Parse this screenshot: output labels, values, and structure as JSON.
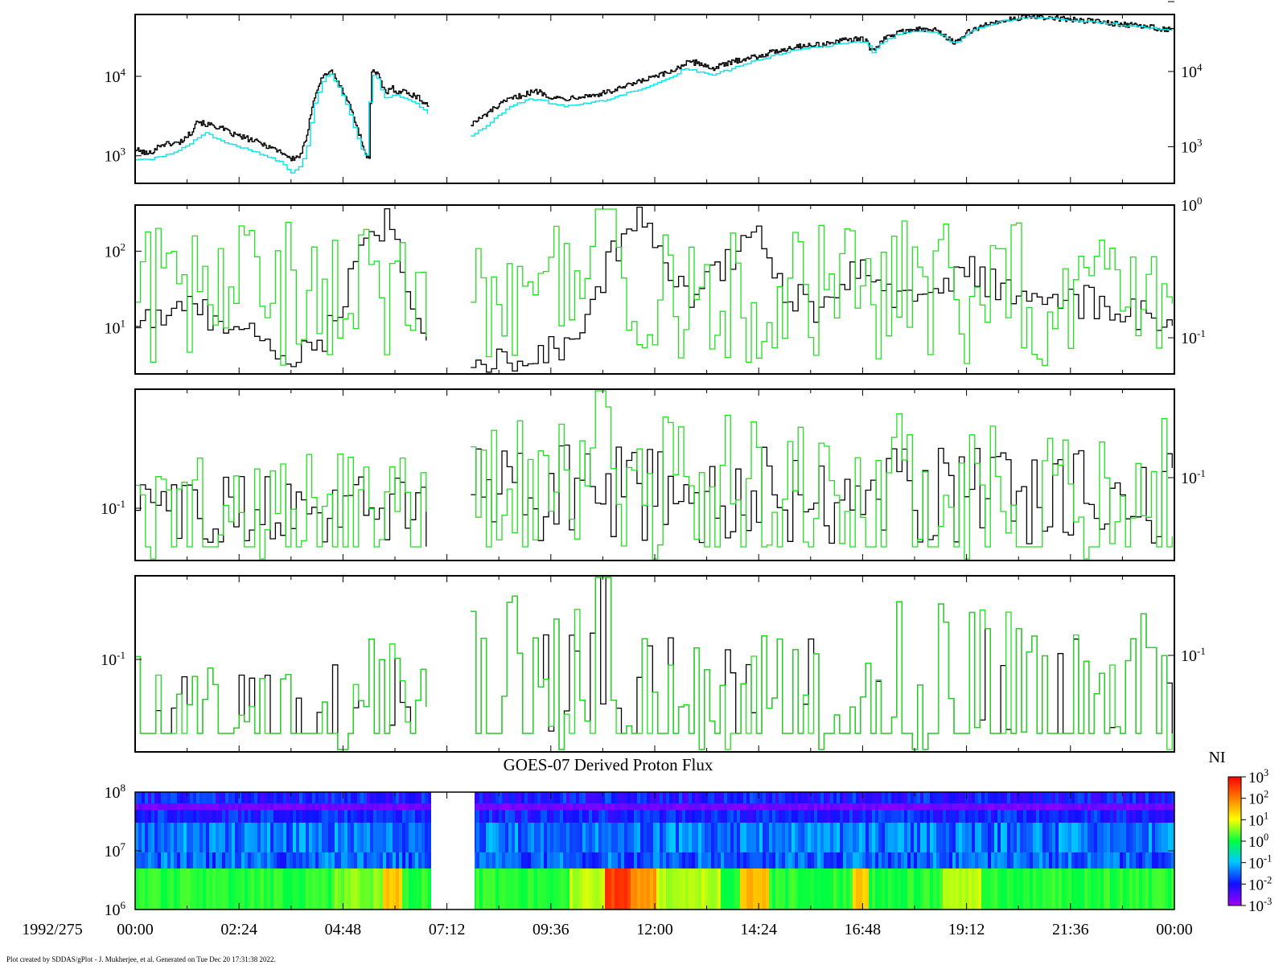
{
  "colors": {
    "black_series": "#000000",
    "cyan_series": "#00e5e5",
    "green_series": "#20e020",
    "frame": "#000000",
    "colorbar_stops": [
      "#a000ff",
      "#1010ff",
      "#00c8ff",
      "#00ff40",
      "#ffff00",
      "#ff8000",
      "#ff0000"
    ]
  },
  "chart_data": [
    {
      "type": "line",
      "panel": 1,
      "scale": "log",
      "ylim": [
        450,
        60000
      ],
      "left_ticks": [
        "10^3",
        "10^4"
      ],
      "right_ticks": [
        "10^3",
        "10^4"
      ],
      "gap_hours": [
        6.8,
        7.75
      ],
      "series": [
        {
          "color": "black",
          "anchors": [
            [
              0.0,
              1200
            ],
            [
              0.3,
              1050
            ],
            [
              0.6,
              1400
            ],
            [
              1.0,
              1450
            ],
            [
              1.1,
              1600
            ],
            [
              1.3,
              2000
            ],
            [
              1.4,
              2800
            ],
            [
              1.6,
              2500
            ],
            [
              1.8,
              2400
            ],
            [
              2.0,
              2200
            ],
            [
              2.2,
              1900
            ],
            [
              2.5,
              1700
            ],
            [
              2.8,
              1500
            ],
            [
              3.1,
              1300
            ],
            [
              3.4,
              1100
            ],
            [
              3.6,
              900
            ],
            [
              3.8,
              1000
            ],
            [
              3.95,
              1600
            ],
            [
              4.1,
              5000
            ],
            [
              4.3,
              9500
            ],
            [
              4.5,
              12000
            ],
            [
              4.7,
              8000
            ],
            [
              4.9,
              5000
            ],
            [
              5.1,
              2500
            ],
            [
              5.3,
              1100
            ],
            [
              5.4,
              900
            ],
            [
              5.45,
              12000
            ],
            [
              5.6,
              10500
            ],
            [
              5.7,
              7500
            ],
            [
              5.8,
              6000
            ],
            [
              5.9,
              7500
            ],
            [
              6.0,
              6500
            ],
            [
              6.2,
              6500
            ],
            [
              6.5,
              5500
            ],
            [
              6.8,
              4200
            ]
          ],
          "anchors_after_gap": [
            [
              7.75,
              2500
            ],
            [
              8.0,
              3000
            ],
            [
              8.3,
              4000
            ],
            [
              8.6,
              5000
            ],
            [
              9.0,
              6000
            ],
            [
              9.3,
              6500
            ],
            [
              9.6,
              5500
            ],
            [
              9.9,
              5200
            ],
            [
              10.2,
              5600
            ],
            [
              10.6,
              5800
            ],
            [
              11.0,
              6500
            ],
            [
              11.5,
              8000
            ],
            [
              11.9,
              9500
            ],
            [
              12.3,
              11000
            ],
            [
              12.7,
              14500
            ],
            [
              13.0,
              15000
            ],
            [
              13.3,
              12500
            ],
            [
              13.7,
              14500
            ],
            [
              14.0,
              16500
            ],
            [
              14.4,
              18000
            ],
            [
              14.9,
              21500
            ],
            [
              15.3,
              24000
            ],
            [
              15.8,
              25000
            ],
            [
              16.2,
              27000
            ],
            [
              16.6,
              30000
            ],
            [
              16.9,
              28000
            ],
            [
              17.0,
              20000
            ],
            [
              17.3,
              30000
            ],
            [
              17.7,
              37000
            ],
            [
              18.0,
              39000
            ],
            [
              18.5,
              38000
            ],
            [
              18.7,
              32000
            ],
            [
              18.95,
              26000
            ],
            [
              19.2,
              35000
            ],
            [
              19.5,
              42000
            ],
            [
              20.0,
              50000
            ],
            [
              20.5,
              56000
            ],
            [
              21.0,
              55000
            ],
            [
              21.5,
              52000
            ],
            [
              22.0,
              50000
            ],
            [
              22.5,
              47000
            ],
            [
              23.0,
              44000
            ],
            [
              23.5,
              41000
            ],
            [
              24.0,
              38000
            ]
          ]
        },
        {
          "color": "cyan",
          "anchors": [
            [
              0.0,
              900
            ],
            [
              0.3,
              880
            ],
            [
              0.6,
              1000
            ],
            [
              1.0,
              1150
            ],
            [
              1.3,
              1500
            ],
            [
              1.6,
              2000
            ],
            [
              1.8,
              1700
            ],
            [
              2.0,
              1500
            ],
            [
              2.4,
              1300
            ],
            [
              2.8,
              1100
            ],
            [
              3.1,
              950
            ],
            [
              3.4,
              800
            ],
            [
              3.6,
              600
            ],
            [
              3.8,
              750
            ],
            [
              3.95,
              1200
            ],
            [
              4.1,
              4000
            ],
            [
              4.3,
              8500
            ],
            [
              4.5,
              11000
            ],
            [
              4.7,
              7000
            ],
            [
              4.9,
              4000
            ],
            [
              5.1,
              1800
            ],
            [
              5.3,
              900
            ],
            [
              5.45,
              10500
            ],
            [
              5.6,
              9500
            ],
            [
              5.7,
              6000
            ],
            [
              5.8,
              5000
            ],
            [
              5.9,
              6000
            ],
            [
              6.2,
              5300
            ],
            [
              6.5,
              4500
            ],
            [
              6.8,
              3200
            ]
          ],
          "anchors_after_gap": [
            [
              7.75,
              1800
            ],
            [
              8.0,
              2200
            ],
            [
              8.3,
              3000
            ],
            [
              8.6,
              4000
            ],
            [
              9.0,
              5000
            ],
            [
              9.3,
              5200
            ],
            [
              9.6,
              4500
            ],
            [
              9.9,
              4200
            ],
            [
              10.2,
              4400
            ],
            [
              10.6,
              4700
            ],
            [
              11.0,
              5300
            ],
            [
              11.5,
              6500
            ],
            [
              11.9,
              7800
            ],
            [
              12.3,
              9500
            ],
            [
              12.7,
              12500
            ],
            [
              13.0,
              11500
            ],
            [
              13.3,
              10500
            ],
            [
              13.7,
              12000
            ],
            [
              14.0,
              14000
            ],
            [
              14.4,
              16000
            ],
            [
              14.9,
              19500
            ],
            [
              15.3,
              22000
            ],
            [
              15.8,
              23500
            ],
            [
              16.2,
              25000
            ],
            [
              16.6,
              28000
            ],
            [
              16.9,
              27000
            ],
            [
              17.0,
              19500
            ],
            [
              17.3,
              28500
            ],
            [
              17.7,
              35000
            ],
            [
              18.0,
              37500
            ],
            [
              18.5,
              36000
            ],
            [
              18.7,
              31000
            ],
            [
              18.95,
              25000
            ],
            [
              19.2,
              34000
            ],
            [
              19.5,
              41000
            ],
            [
              20.0,
              49000
            ],
            [
              20.5,
              55000
            ],
            [
              21.0,
              54000
            ],
            [
              21.5,
              51000
            ],
            [
              22.0,
              49000
            ],
            [
              22.5,
              46000
            ],
            [
              23.0,
              43000
            ],
            [
              23.5,
              40000
            ],
            [
              24.0,
              37000
            ]
          ]
        }
      ]
    },
    {
      "type": "line",
      "panel": 2,
      "scale": "log",
      "ylim": [
        2.5,
        400
      ],
      "left_ticks": [
        "10^1",
        "10^2"
      ],
      "right_ticks": [
        "10^-1",
        "10^0"
      ],
      "gap_hours": [
        6.8,
        7.75
      ],
      "series": [
        {
          "color": "black",
          "trend": [
            [
              0,
              12
            ],
            [
              1,
              18
            ],
            [
              2,
              14
            ],
            [
              3,
              6
            ],
            [
              4,
              4
            ],
            [
              4.6,
              15
            ],
            [
              5.0,
              60
            ],
            [
              5.8,
              250
            ],
            [
              6.3,
              20
            ],
            [
              6.8,
              5
            ],
            [
              7.75,
              3.5
            ],
            [
              8.5,
              3.5
            ],
            [
              9.2,
              3.8
            ],
            [
              9.8,
              6
            ],
            [
              10.4,
              15
            ],
            [
              11,
              90
            ],
            [
              11.6,
              250
            ],
            [
              12.2,
              60
            ],
            [
              12.8,
              25
            ],
            [
              13.6,
              60
            ],
            [
              14.2,
              220
            ],
            [
              14.8,
              40
            ],
            [
              15.6,
              18
            ],
            [
              16.3,
              35
            ],
            [
              16.8,
              80
            ],
            [
              17.5,
              25
            ],
            [
              18.3,
              30
            ],
            [
              19.2,
              55
            ],
            [
              20,
              30
            ],
            [
              21,
              20
            ],
            [
              22,
              22
            ],
            [
              23,
              15
            ],
            [
              24,
              10
            ]
          ]
        },
        {
          "color": "green",
          "trend": [
            [
              0,
              12
            ],
            [
              24,
              12
            ]
          ]
        }
      ]
    },
    {
      "type": "line",
      "panel": 3,
      "scale": "log",
      "left_ticks": [
        "10^-1"
      ],
      "right_ticks": [
        "10^-1"
      ],
      "gap_hours": [
        6.8,
        7.75
      ],
      "series": [
        {
          "color": "black"
        },
        {
          "color": "green"
        }
      ]
    },
    {
      "type": "line",
      "panel": 4,
      "scale": "log",
      "left_ticks": [
        "10^-1"
      ],
      "right_ticks": [
        "10^-1"
      ],
      "gap_hours": [
        6.8,
        7.75
      ],
      "series": [
        {
          "color": "black"
        },
        {
          "color": "green"
        }
      ]
    },
    {
      "type": "heatmap",
      "panel": 5,
      "title": "GOES-07 Derived Proton Flux",
      "left_ticks": [
        "10^6",
        "10^7",
        "10^8"
      ],
      "ylim": [
        1000000,
        100000000
      ],
      "gap_hours": [
        6.8,
        7.8
      ],
      "colorbar": {
        "label": "NI",
        "ticks": [
          "10^3",
          "10^2",
          "10^1",
          "10^0",
          "10^-1",
          "10^-2",
          "10^-3"
        ]
      }
    }
  ],
  "x_axis": {
    "date_label": "1992/275",
    "ticks": [
      "00:00",
      "02:24",
      "04:48",
      "07:12",
      "09:36",
      "12:00",
      "14:24",
      "16:48",
      "19:12",
      "21:36",
      "00:00"
    ]
  },
  "footer": {
    "credit": "Plot created by SDDAS/gPlot - J. Mukherjee, et al.  Generated on Tue Dec 20 17:31:38 2022."
  }
}
